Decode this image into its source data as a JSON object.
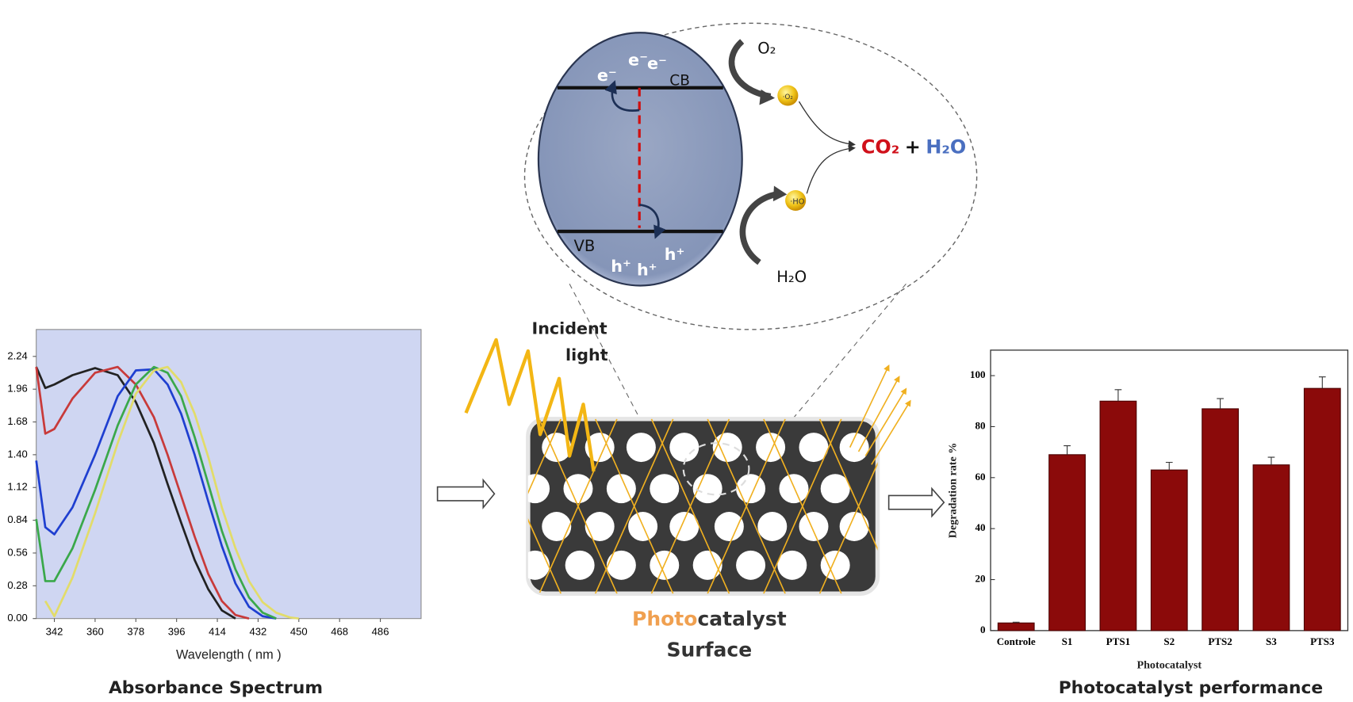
{
  "chart_data": [
    {
      "type": "line",
      "x_label": "Wavelength ( nm )",
      "caption": "Absorbance Spectrum",
      "x": [
        334,
        338,
        342,
        350,
        360,
        370,
        378,
        386,
        392,
        398,
        404,
        410,
        416,
        422,
        428,
        434,
        440,
        446,
        450
      ],
      "series": [
        {
          "color": "#222222",
          "values": [
            2.15,
            1.97,
            2.0,
            2.08,
            2.14,
            2.08,
            1.85,
            1.5,
            1.15,
            0.82,
            0.5,
            0.25,
            0.07,
            0,
            null,
            null,
            null,
            null,
            null
          ]
        },
        {
          "color": "#c83a3a",
          "values": [
            2.15,
            1.58,
            1.62,
            1.88,
            2.1,
            2.15,
            2.0,
            1.72,
            1.4,
            1.05,
            0.7,
            0.38,
            0.15,
            0.03,
            0,
            null,
            null,
            null,
            null
          ]
        },
        {
          "color": "#1f3fd0",
          "values": [
            1.35,
            0.78,
            0.72,
            0.95,
            1.4,
            1.9,
            2.12,
            2.13,
            2.0,
            1.75,
            1.4,
            1.0,
            0.62,
            0.3,
            0.1,
            0.02,
            0,
            null,
            null
          ]
        },
        {
          "color": "#3aa84a",
          "values": [
            0.85,
            0.32,
            0.32,
            0.6,
            1.1,
            1.65,
            2.0,
            2.15,
            2.1,
            1.9,
            1.55,
            1.15,
            0.75,
            0.42,
            0.18,
            0.05,
            0,
            null,
            null
          ]
        },
        {
          "color": "#e2dc6a",
          "values": [
            null,
            0.15,
            0.02,
            0.35,
            0.9,
            1.5,
            1.92,
            2.12,
            2.15,
            2.02,
            1.75,
            1.38,
            0.95,
            0.6,
            0.32,
            0.14,
            0.05,
            0.01,
            0
          ]
        }
      ],
      "xlim": [
        334,
        504
      ],
      "xticks": [
        342,
        360,
        378,
        396,
        414,
        432,
        450,
        468,
        486
      ],
      "ylim": [
        0,
        2.47
      ],
      "yticks": [
        {
          "value": 0,
          "label": "0.00"
        },
        {
          "value": 0.28,
          "label": "0.28"
        },
        {
          "value": 0.56,
          "label": "0.56"
        },
        {
          "value": 0.84,
          "label": "0.84"
        },
        {
          "value": 1.12,
          "label": "1.12"
        },
        {
          "value": 1.4,
          "label": "1.40"
        },
        {
          "value": 1.68,
          "label": "1.68"
        },
        {
          "value": 1.96,
          "label": "1.96"
        },
        {
          "value": 2.24,
          "label": "2.24"
        }
      ],
      "plot_background": "#cfd6f2"
    },
    {
      "type": "bar",
      "x_label": "Photocatalyst",
      "y_label": "Degradation rate %",
      "caption": "Photocatalyst performance",
      "categories": [
        "Controle",
        "S1",
        "PTS1",
        "S2",
        "PTS2",
        "S3",
        "PTS3"
      ],
      "values": [
        3,
        69,
        90,
        63,
        87,
        65,
        95
      ],
      "errors": [
        0.3,
        3.5,
        4.5,
        3,
        4,
        3,
        4.5
      ],
      "color": "#8b0a0a",
      "ylim": [
        0,
        110
      ],
      "yticks": [
        0,
        20,
        40,
        60,
        80,
        100
      ]
    }
  ],
  "diagram": {
    "incident_light": [
      "Incident",
      "light"
    ],
    "surface_label": {
      "photo": "Photo",
      "catalyst": "catalyst",
      "surface": "Surface"
    },
    "band": {
      "cb": "CB",
      "vb": "VB",
      "electrons": [
        "e⁻",
        "e⁻",
        "e⁻"
      ],
      "holes": [
        "h⁺",
        "h⁺",
        "h⁺"
      ]
    },
    "reactants": {
      "o2": "O₂",
      "h2o": "H₂O",
      "superoxide": "·O₂",
      "hydroxyl": "·HO"
    },
    "products": {
      "co2": "CO₂",
      "plus": "+",
      "h2o": "H₂O"
    }
  }
}
